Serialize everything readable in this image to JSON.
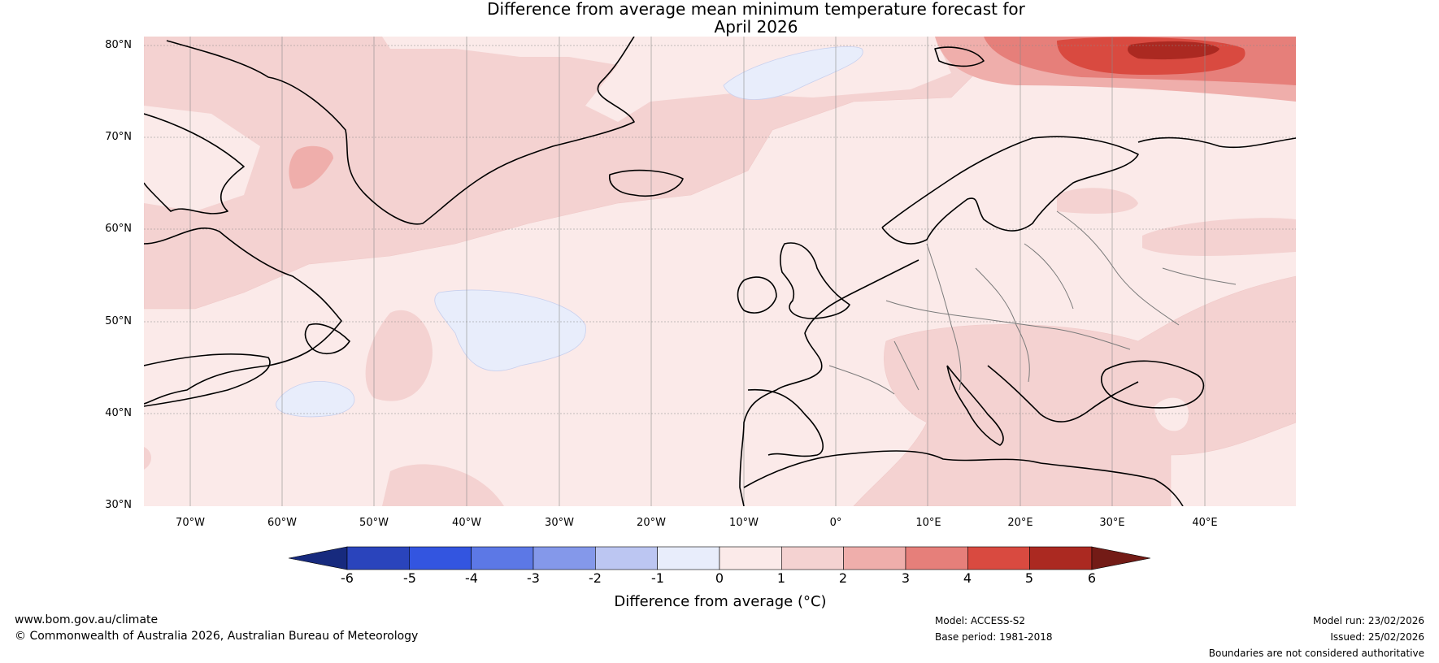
{
  "title_line1": "Difference from average mean minimum temperature forecast for",
  "title_line2": "April 2026",
  "lat_labels": [
    "80°N",
    "70°N",
    "60°N",
    "50°N",
    "40°N",
    "30°N"
  ],
  "lon_labels": [
    "70°W",
    "60°W",
    "50°W",
    "40°W",
    "30°W",
    "20°W",
    "10°W",
    "0°",
    "10°E",
    "20°E",
    "30°E",
    "40°E"
  ],
  "colorbar": {
    "ticks": [
      "-6",
      "-5",
      "-4",
      "-3",
      "-2",
      "-1",
      "0",
      "1",
      "2",
      "3",
      "4",
      "5",
      "6"
    ],
    "label": "Difference from average (°C)",
    "colors": [
      "#172a7e",
      "#2a44bc",
      "#3355e0",
      "#5c78e6",
      "#8498ea",
      "#bcc6f2",
      "#e8edfb",
      "#fbeae9",
      "#f4d2d1",
      "#efaeab",
      "#e67f7a",
      "#d94a40",
      "#ab2921",
      "#731b16"
    ]
  },
  "footer": {
    "website": "www.bom.gov.au/climate",
    "copyright": "© Commonwealth of Australia 2026, Australian Bureau of Meteorology",
    "model": "Model: ACCESS-S2",
    "base_period": "Base period: 1981-2018",
    "model_run": "Model run: 23/02/2026",
    "issued": "Issued: 25/02/2026",
    "disclaimer": "Boundaries are not considered authoritative"
  }
}
